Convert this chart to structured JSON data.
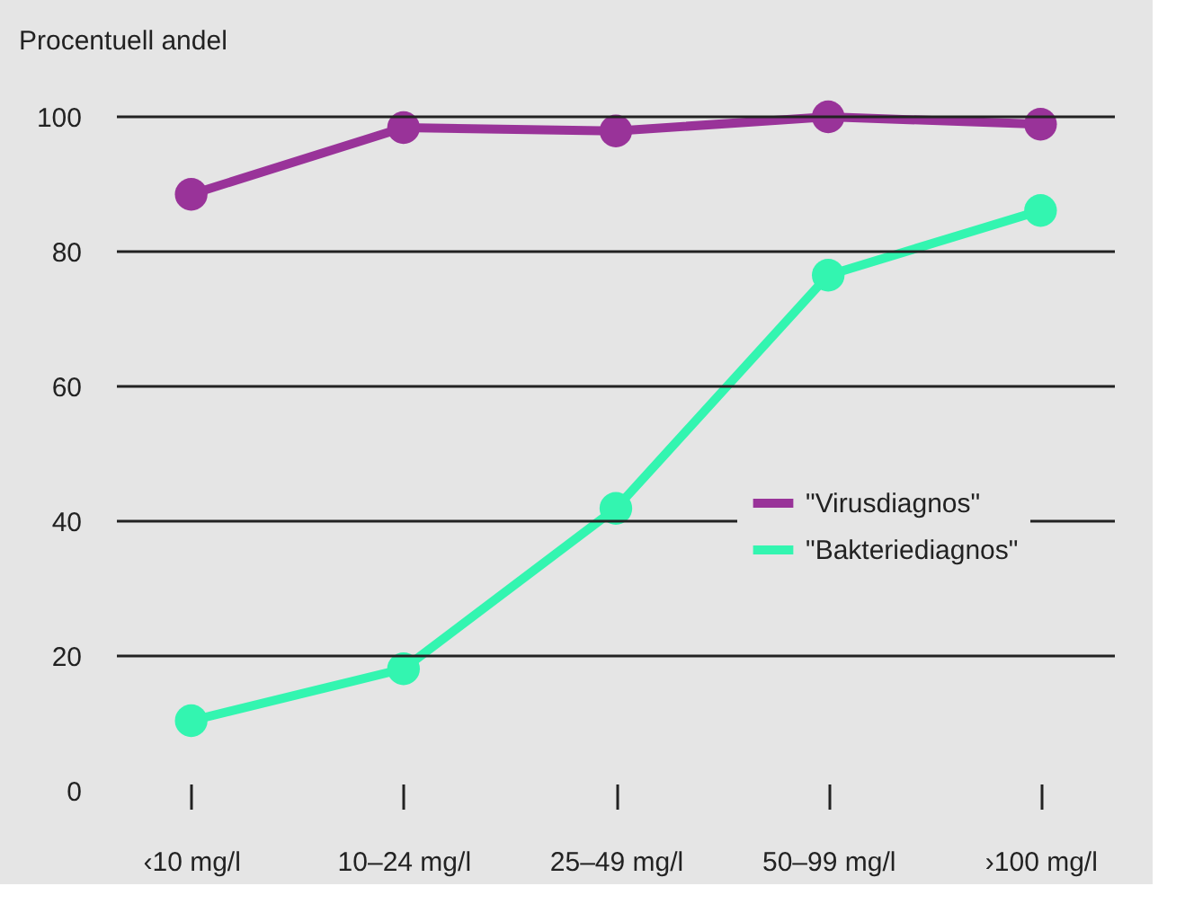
{
  "chart_data": {
    "type": "line",
    "ylabel": "Procentuell andel",
    "categories": [
      "‹10 mg/l",
      "10–24 mg/l",
      "25–49 mg/l",
      "50–99 mg/l",
      "›100 mg/l"
    ],
    "series": [
      {
        "name": "\"Virusdiagnos\"",
        "color": "#993399",
        "values": [
          88.5,
          98.4,
          97.9,
          100,
          98.9
        ]
      },
      {
        "name": "\"Bakteriediagnos\"",
        "color": "#33f5b0",
        "values": [
          10.4,
          18.1,
          41.9,
          76.5,
          86.1
        ]
      }
    ],
    "ylim": [
      0,
      100
    ],
    "yticks": [
      0,
      20,
      40,
      60,
      80,
      100
    ],
    "grid": "y",
    "legend": "right",
    "marker": "circle",
    "line_style": "solid"
  }
}
